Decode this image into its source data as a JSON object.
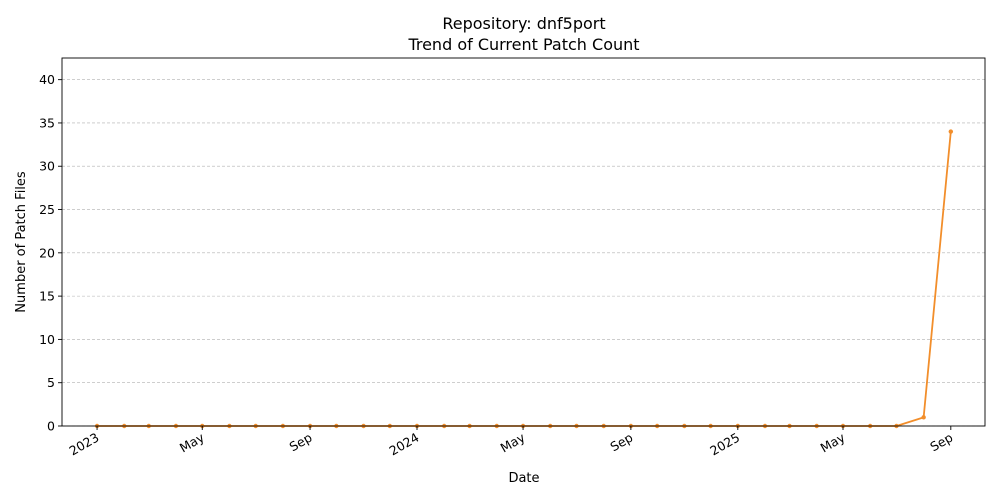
{
  "chart_data": {
    "type": "line",
    "title": "Repository: dnf5port",
    "subtitle": "Trend of Current Patch Count",
    "xlabel": "Date",
    "ylabel": "Number of Patch Files",
    "ylim": [
      0,
      42.5
    ],
    "xlim": [
      "2022-11-22",
      "2025-10-10"
    ],
    "grid": "y-dashed",
    "yticks": [
      0,
      5,
      10,
      15,
      20,
      25,
      30,
      35,
      40
    ],
    "xticks": [
      {
        "date": "2023-01-01",
        "label": "2023"
      },
      {
        "date": "2023-05-01",
        "label": "May"
      },
      {
        "date": "2023-09-01",
        "label": "Sep"
      },
      {
        "date": "2024-01-01",
        "label": "2024"
      },
      {
        "date": "2024-05-01",
        "label": "May"
      },
      {
        "date": "2024-09-01",
        "label": "Sep"
      },
      {
        "date": "2025-01-01",
        "label": "2025"
      },
      {
        "date": "2025-05-01",
        "label": "May"
      },
      {
        "date": "2025-09-01",
        "label": "Sep"
      }
    ],
    "series": [
      {
        "color": "#f28e2b",
        "points": [
          {
            "x": "2023-01-01",
            "y": 0
          },
          {
            "x": "2023-02-01",
            "y": 0
          },
          {
            "x": "2023-03-01",
            "y": 0
          },
          {
            "x": "2023-04-01",
            "y": 0
          },
          {
            "x": "2023-05-01",
            "y": 0
          },
          {
            "x": "2023-06-01",
            "y": 0
          },
          {
            "x": "2023-07-01",
            "y": 0
          },
          {
            "x": "2023-08-01",
            "y": 0
          },
          {
            "x": "2023-09-01",
            "y": 0
          },
          {
            "x": "2023-10-01",
            "y": 0
          },
          {
            "x": "2023-11-01",
            "y": 0
          },
          {
            "x": "2023-12-01",
            "y": 0
          },
          {
            "x": "2024-01-01",
            "y": 0
          },
          {
            "x": "2024-02-01",
            "y": 0
          },
          {
            "x": "2024-03-01",
            "y": 0
          },
          {
            "x": "2024-04-01",
            "y": 0
          },
          {
            "x": "2024-05-01",
            "y": 0
          },
          {
            "x": "2024-06-01",
            "y": 0
          },
          {
            "x": "2024-07-01",
            "y": 0
          },
          {
            "x": "2024-08-01",
            "y": 0
          },
          {
            "x": "2024-09-01",
            "y": 0
          },
          {
            "x": "2024-10-01",
            "y": 0
          },
          {
            "x": "2024-11-01",
            "y": 0
          },
          {
            "x": "2024-12-01",
            "y": 0
          },
          {
            "x": "2025-01-01",
            "y": 0
          },
          {
            "x": "2025-02-01",
            "y": 0
          },
          {
            "x": "2025-03-01",
            "y": 0
          },
          {
            "x": "2025-04-01",
            "y": 0
          },
          {
            "x": "2025-05-01",
            "y": 0
          },
          {
            "x": "2025-06-01",
            "y": 0
          },
          {
            "x": "2025-07-01",
            "y": 0
          },
          {
            "x": "2025-08-01",
            "y": 1
          },
          {
            "x": "2025-09-01",
            "y": 34
          }
        ]
      }
    ]
  }
}
